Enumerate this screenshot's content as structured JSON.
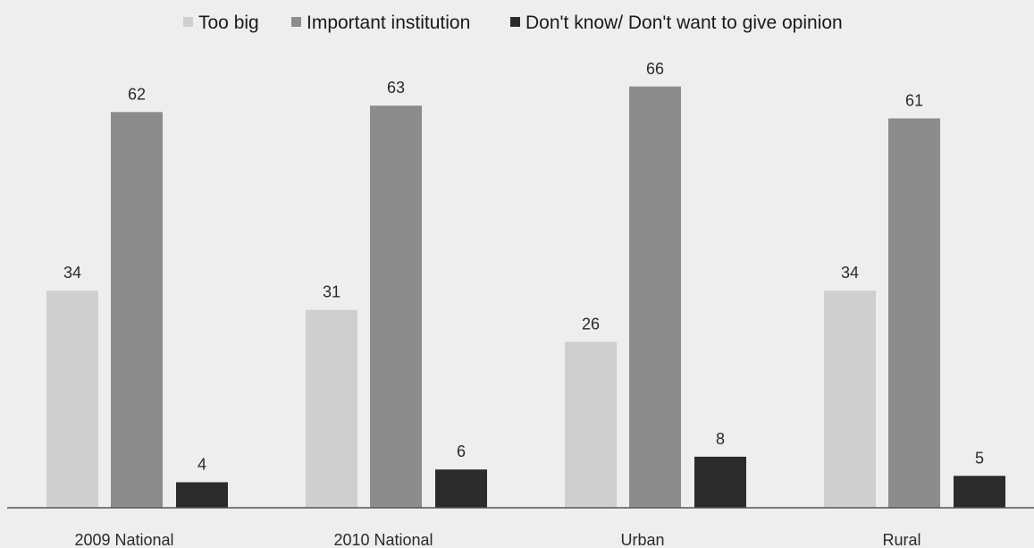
{
  "chart_data": {
    "type": "bar",
    "categories": [
      "2009 National",
      "2010 National",
      "Urban",
      "Rural"
    ],
    "series": [
      {
        "name": "Too big",
        "values": [
          34,
          31,
          26,
          34
        ],
        "color": "#cfcfcf"
      },
      {
        "name": "Important institution",
        "values": [
          62,
          63,
          66,
          61
        ],
        "color": "#8c8c8c"
      },
      {
        "name": "Don't know/ Don't want to give opinion",
        "values": [
          4,
          6,
          8,
          5
        ],
        "color": "#2b2b2b"
      }
    ],
    "title": "",
    "xlabel": "",
    "ylabel": "",
    "ylim": [
      0,
      66
    ],
    "grid": false,
    "legend_position": "top-center",
    "data_labels": true
  }
}
